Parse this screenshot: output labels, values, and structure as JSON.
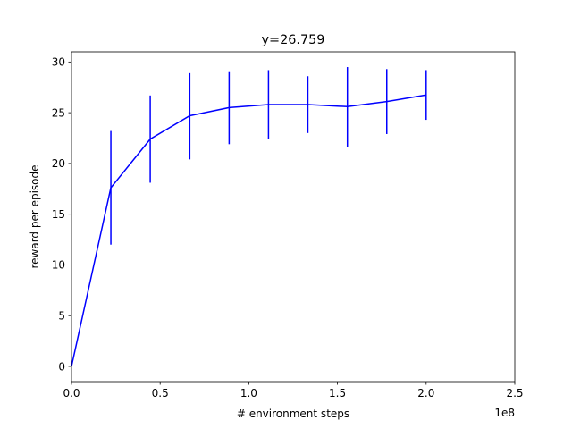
{
  "chart_data": {
    "type": "line",
    "title": "y=26.759",
    "xlabel": "# environment steps",
    "ylabel": "reward per episode",
    "x_offset_label": "1e8",
    "xlim": [
      0,
      2.5
    ],
    "ylim": [
      -1.5,
      31.0
    ],
    "x_ticks": [
      0.0,
      0.5,
      1.0,
      1.5,
      2.0,
      2.5
    ],
    "x_tick_labels": [
      "0.0",
      "0.5",
      "1.0",
      "1.5",
      "2.0",
      "2.5"
    ],
    "y_ticks": [
      0,
      5,
      10,
      15,
      20,
      25,
      30
    ],
    "y_tick_labels": [
      "0",
      "5",
      "10",
      "15",
      "20",
      "25",
      "30"
    ],
    "grid": false,
    "color": "#0000ff",
    "series": [
      {
        "x": [
          0.0,
          0.222,
          0.444,
          0.667,
          0.889,
          1.111,
          1.333,
          1.556,
          1.778,
          2.0
        ],
        "y": [
          0.0,
          17.6,
          22.4,
          24.7,
          25.5,
          25.8,
          25.8,
          25.6,
          26.1,
          26.759
        ],
        "err_low": [
          null,
          12.0,
          18.1,
          20.4,
          21.9,
          22.4,
          23.0,
          21.6,
          22.9,
          24.3
        ],
        "err_high": [
          null,
          23.2,
          26.7,
          28.9,
          29.0,
          29.2,
          28.6,
          29.5,
          29.3,
          29.2
        ]
      }
    ]
  }
}
